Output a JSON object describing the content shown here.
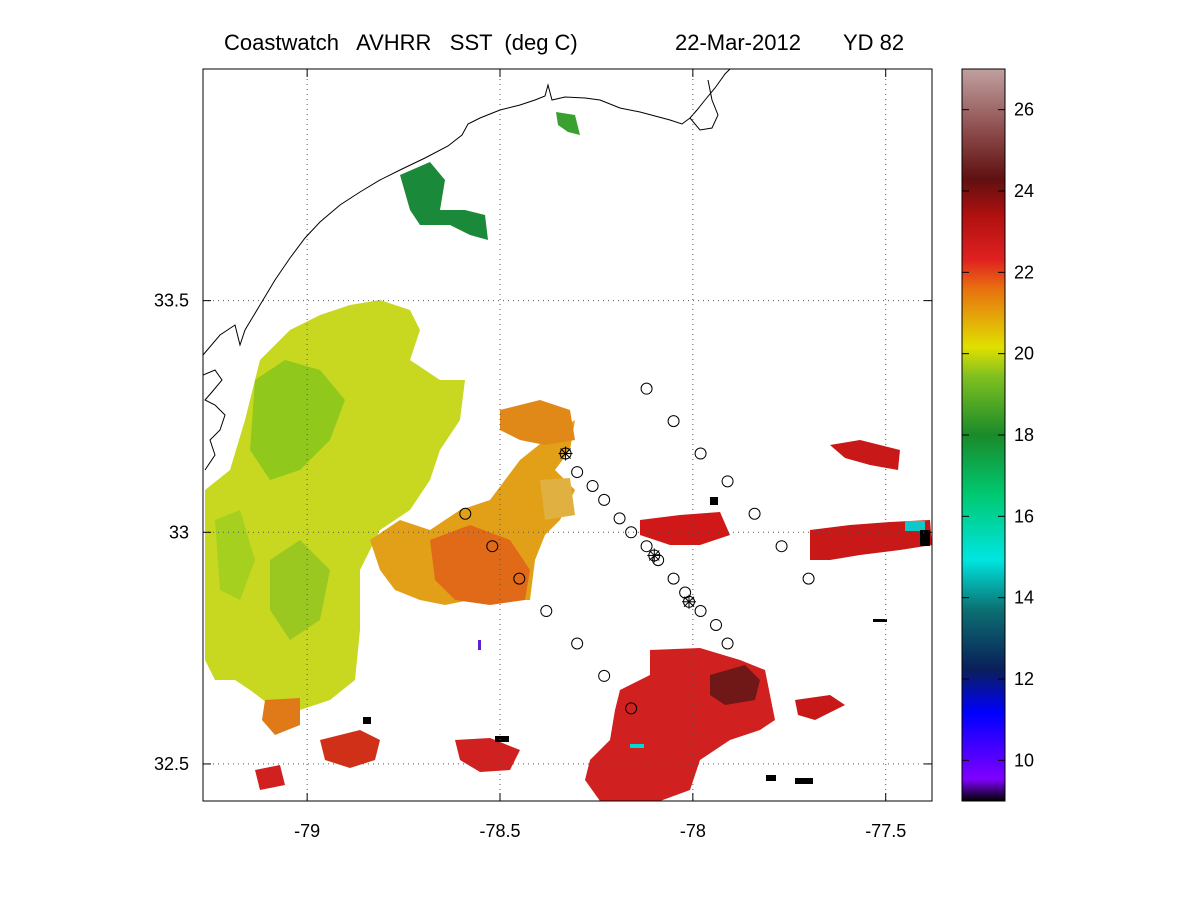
{
  "title": {
    "left": "Coastwatch   AVHRR   SST  (deg C)",
    "date": "22-Mar-2012",
    "yearday": "YD 82"
  },
  "map": {
    "lon_range": [
      -79.27,
      -77.38
    ],
    "lat_range": [
      32.42,
      34.0
    ],
    "x_ticks": [
      -79,
      -78.5,
      -78,
      -77.5
    ],
    "x_tick_labels": [
      "-79",
      "-78.5",
      "-78",
      "-77.5"
    ],
    "y_ticks": [
      33.5,
      33,
      32.5
    ],
    "y_tick_labels": [
      "33.5",
      "33",
      "32.5"
    ],
    "grid": "dotted"
  },
  "colorbar": {
    "range": [
      9,
      27
    ],
    "ticks": [
      10,
      12,
      14,
      16,
      18,
      20,
      22,
      24,
      26
    ],
    "tick_labels": [
      "10",
      "12",
      "14",
      "16",
      "18",
      "20",
      "22",
      "24",
      "26"
    ],
    "colors": [
      "#000000",
      "#8000ff",
      "#0000ff",
      "#0a1f5a",
      "#0b6e70",
      "#00e5e0",
      "#00c870",
      "#1a8a2a",
      "#80c020",
      "#e0e000",
      "#e87010",
      "#e02020",
      "#b01010",
      "#601010",
      "#905050",
      "#c0a0a0"
    ]
  },
  "chart_data": {
    "type": "scatter",
    "title": "Coastwatch   AVHRR   SST  (deg C)",
    "units": "deg C",
    "xlim": [
      -79.27,
      -77.38
    ],
    "ylim": [
      32.42,
      34.0
    ],
    "stations_circles": [
      {
        "lon": -78.12,
        "lat": 33.31
      },
      {
        "lon": -78.05,
        "lat": 33.24
      },
      {
        "lon": -77.98,
        "lat": 33.17
      },
      {
        "lon": -77.91,
        "lat": 33.11
      },
      {
        "lon": -77.84,
        "lat": 33.04
      },
      {
        "lon": -77.77,
        "lat": 32.97
      },
      {
        "lon": -77.7,
        "lat": 32.9
      },
      {
        "lon": -78.59,
        "lat": 33.04
      },
      {
        "lon": -78.52,
        "lat": 32.97
      },
      {
        "lon": -78.45,
        "lat": 32.9
      },
      {
        "lon": -78.38,
        "lat": 32.83
      },
      {
        "lon": -78.3,
        "lat": 32.76
      },
      {
        "lon": -78.23,
        "lat": 32.69
      },
      {
        "lon": -78.16,
        "lat": 32.62
      },
      {
        "lon": -78.3,
        "lat": 33.13
      },
      {
        "lon": -78.26,
        "lat": 33.1
      },
      {
        "lon": -78.23,
        "lat": 33.07
      },
      {
        "lon": -78.19,
        "lat": 33.03
      },
      {
        "lon": -78.16,
        "lat": 33.0
      },
      {
        "lon": -78.12,
        "lat": 32.97
      },
      {
        "lon": -78.09,
        "lat": 32.94
      },
      {
        "lon": -78.05,
        "lat": 32.9
      },
      {
        "lon": -78.02,
        "lat": 32.87
      },
      {
        "lon": -77.98,
        "lat": 32.83
      },
      {
        "lon": -77.94,
        "lat": 32.8
      },
      {
        "lon": -77.91,
        "lat": 32.76
      }
    ],
    "stations_stars": [
      {
        "lon": -78.33,
        "lat": 33.17
      },
      {
        "lon": -78.1,
        "lat": 32.95
      },
      {
        "lon": -78.01,
        "lat": 32.85
      }
    ]
  }
}
